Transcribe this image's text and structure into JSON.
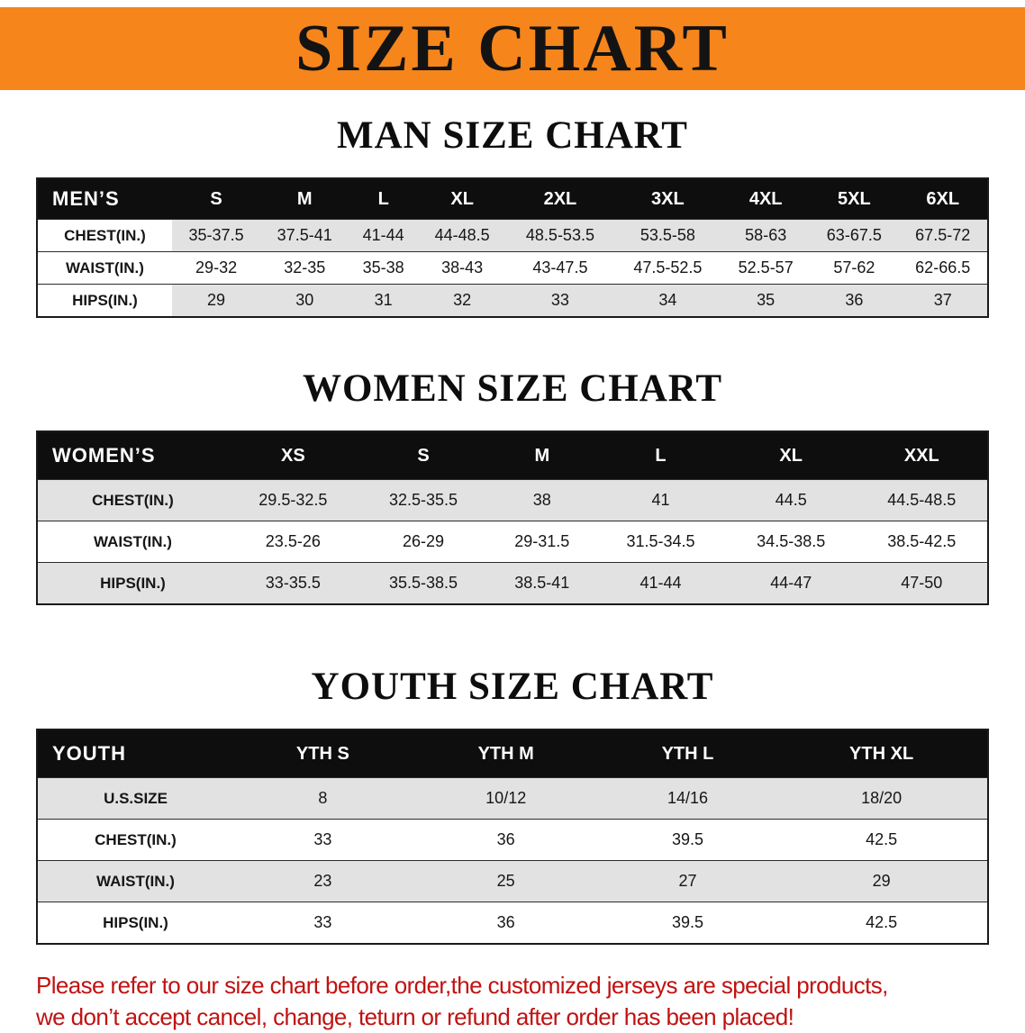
{
  "banner": {
    "title": "SIZE CHART",
    "background_color": "#f6851c"
  },
  "sections": [
    {
      "heading": "MAN SIZE CHART",
      "table": {
        "header": [
          "MEN’S",
          "S",
          "M",
          "L",
          "XL",
          "2XL",
          "3XL",
          "4XL",
          "5XL",
          "6XL"
        ],
        "rows": [
          [
            "CHEST(IN.)",
            "35-37.5",
            "37.5-41",
            "41-44",
            "44-48.5",
            "48.5-53.5",
            "53.5-58",
            "58-63",
            "63-67.5",
            "67.5-72"
          ],
          [
            "WAIST(IN.)",
            "29-32",
            "32-35",
            "35-38",
            "38-43",
            "43-47.5",
            "47.5-52.5",
            "52.5-57",
            "57-62",
            "62-66.5"
          ],
          [
            "HIPS(IN.)",
            "29",
            "30",
            "31",
            "32",
            "33",
            "34",
            "35",
            "36",
            "37"
          ]
        ]
      }
    },
    {
      "heading": "WOMEN SIZE CHART",
      "table": {
        "header": [
          "WOMEN’S",
          "XS",
          "S",
          "M",
          "L",
          "XL",
          "XXL"
        ],
        "rows": [
          [
            "CHEST(IN.)",
            "29.5-32.5",
            "32.5-35.5",
            "38",
            "41",
            "44.5",
            "44.5-48.5"
          ],
          [
            "WAIST(IN.)",
            "23.5-26",
            "26-29",
            "29-31.5",
            "31.5-34.5",
            "34.5-38.5",
            "38.5-42.5"
          ],
          [
            "HIPS(IN.)",
            "33-35.5",
            "35.5-38.5",
            "38.5-41",
            "41-44",
            "44-47",
            "47-50"
          ]
        ]
      }
    },
    {
      "heading": "YOUTH SIZE CHART",
      "table": {
        "header": [
          "YOUTH",
          "YTH S",
          "YTH M",
          "YTH L",
          "YTH XL"
        ],
        "rows": [
          [
            "U.S.SIZE",
            "8",
            "10/12",
            "14/16",
            "18/20"
          ],
          [
            "CHEST(IN.)",
            "33",
            "36",
            "39.5",
            "42.5"
          ],
          [
            "WAIST(IN.)",
            "23",
            "25",
            "27",
            "29"
          ],
          [
            "HIPS(IN.)",
            "33",
            "36",
            "39.5",
            "42.5"
          ]
        ]
      }
    }
  ],
  "footer": {
    "line1": "Please refer to our size chart before order,the customized jerseys are special products,",
    "line2": "we don’t accept cancel, change, teturn or refund after order has been placed!",
    "text_color": "#c01212"
  }
}
